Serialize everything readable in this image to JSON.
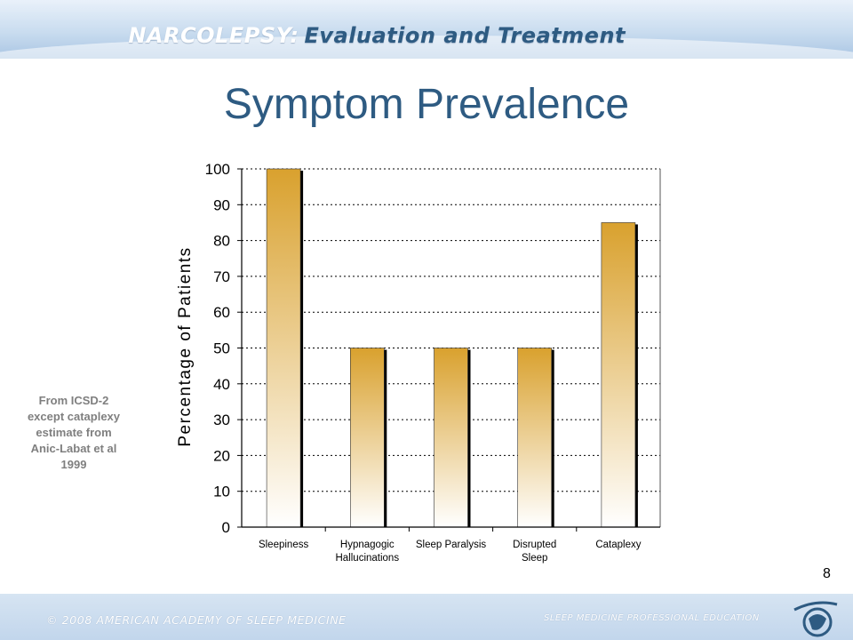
{
  "header": {
    "title": "NARCOLEPSY:",
    "subtitle": "Evaluation and Treatment"
  },
  "slide": {
    "title": "Symptom Prevalence",
    "page_number": "8"
  },
  "note": "From ICSD-2 except cataplexy estimate from Anic-Labat et al 1999",
  "footer": {
    "left": "© 2008 AMERICAN ACADEMY OF SLEEP MEDICINE",
    "right": "SLEEP MEDICINE PROFESSIONAL EDUCATION"
  },
  "colors": {
    "bar_top": "#d9a12e",
    "bar_bottom": "#ffffff",
    "title": "#2e5b82"
  },
  "chart_data": {
    "type": "bar",
    "categories": [
      [
        "Sleepiness"
      ],
      [
        "Hypnagogic",
        "Hallucinations"
      ],
      [
        "Sleep Paralysis"
      ],
      [
        "Disrupted",
        "Sleep"
      ],
      [
        "Cataplexy"
      ]
    ],
    "values": [
      100,
      50,
      50,
      50,
      85
    ],
    "ylabel": "Percentage of Patients",
    "ylim": [
      0,
      100
    ],
    "yticks": [
      0,
      10,
      20,
      30,
      40,
      50,
      60,
      70,
      80,
      90,
      100
    ],
    "grid": true
  }
}
